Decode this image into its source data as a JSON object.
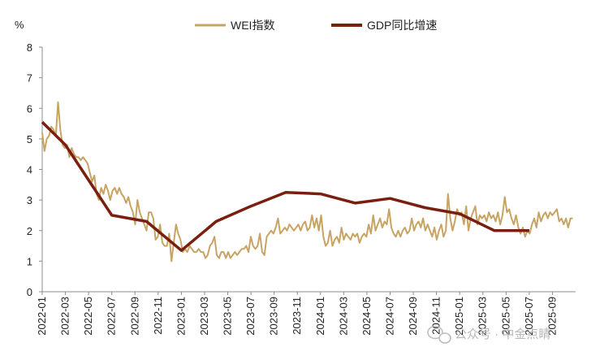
{
  "chart_data": {
    "type": "line",
    "title": "",
    "ylabel": "%",
    "xlabel": "",
    "ylim": [
      0,
      8
    ],
    "yticks": [
      0,
      1,
      2,
      3,
      4,
      5,
      6,
      7,
      8
    ],
    "xlim": [
      "2022-01",
      "2025-10"
    ],
    "xticks": [
      "2022-01",
      "2022-03",
      "2022-05",
      "2022-07",
      "2022-09",
      "2022-11",
      "2023-01",
      "2023-03",
      "2023-05",
      "2023-07",
      "2023-09",
      "2023-11",
      "2024-01",
      "2024-03",
      "2024-05",
      "2024-07",
      "2024-09",
      "2024-11",
      "2025-01",
      "2025-03",
      "2025-05",
      "2025-07",
      "2025-09"
    ],
    "grid": false,
    "legend_position": "top-center",
    "series": [
      {
        "name": "WEI指数",
        "color": "#c8a464",
        "weekly_start": "2022-01",
        "values": [
          5.2,
          4.6,
          5.0,
          5.1,
          5.4,
          5.3,
          5.1,
          6.2,
          5.3,
          4.8,
          4.7,
          4.8,
          4.4,
          4.7,
          4.5,
          4.4,
          4.4,
          4.3,
          4.4,
          4.3,
          4.2,
          3.9,
          3.6,
          3.8,
          3.2,
          3.0,
          3.4,
          3.2,
          3.5,
          3.3,
          3.0,
          3.3,
          3.4,
          3.2,
          3.4,
          3.2,
          3.1,
          2.9,
          3.1,
          2.8,
          2.6,
          2.2,
          3.0,
          2.6,
          2.4,
          2.2,
          2.0,
          2.6,
          2.6,
          2.4,
          1.7,
          1.8,
          2.2,
          1.6,
          1.5,
          1.5,
          1.9,
          1.0,
          1.6,
          2.2,
          1.9,
          1.7,
          1.3,
          1.4,
          1.3,
          1.5,
          1.4,
          1.3,
          1.3,
          1.4,
          1.3,
          1.3,
          1.1,
          1.2,
          1.5,
          1.6,
          1.8,
          1.2,
          1.1,
          1.3,
          1.3,
          1.1,
          1.3,
          1.1,
          1.2,
          1.3,
          1.2,
          1.3,
          1.4,
          1.4,
          1.5,
          1.3,
          1.8,
          1.5,
          1.4,
          1.5,
          1.9,
          1.3,
          1.2,
          1.8,
          1.9,
          2.0,
          1.9,
          2.1,
          2.4,
          1.9,
          2.0,
          2.1,
          2.0,
          2.2,
          2.1,
          2.0,
          2.1,
          2.2,
          2.0,
          2.2,
          2.3,
          2.0,
          2.1,
          2.5,
          2.1,
          2.4,
          2.0,
          2.5,
          1.8,
          1.5,
          1.6,
          2.0,
          1.5,
          1.7,
          1.8,
          1.6,
          2.1,
          1.7,
          1.9,
          1.8,
          1.7,
          1.9,
          1.8,
          1.9,
          1.6,
          1.8,
          1.9,
          1.8,
          2.2,
          1.9,
          2.5,
          2.0,
          2.2,
          2.4,
          2.1,
          2.3,
          2.2,
          2.7,
          2.1,
          1.9,
          1.8,
          2.0,
          1.8,
          2.0,
          2.1,
          1.9,
          2.0,
          2.4,
          2.0,
          2.2,
          2.3,
          2.1,
          2.4,
          2.0,
          2.2,
          2.0,
          1.8,
          2.1,
          1.7,
          2.0,
          2.2,
          1.8,
          2.0,
          3.2,
          2.4,
          2.0,
          2.3,
          2.7,
          2.5,
          2.6,
          2.2,
          2.8,
          2.0,
          2.4,
          2.6,
          2.8,
          2.2,
          2.5,
          2.4,
          2.5,
          2.3,
          2.6,
          2.4,
          2.5,
          2.3,
          2.6,
          2.2,
          2.5,
          3.1,
          2.6,
          2.7,
          2.4,
          2.2,
          2.5,
          2.1,
          1.9,
          2.1,
          1.8,
          2.0,
          1.9,
          2.2,
          2.4,
          2.1,
          2.6,
          2.3,
          2.5,
          2.6,
          2.4,
          2.6,
          2.5,
          2.6,
          2.7,
          2.3,
          2.4,
          2.2,
          2.4,
          2.1,
          2.4,
          2.4
        ]
      },
      {
        "name": "GDP同比增速",
        "color": "#7a1f10",
        "points": [
          [
            "2022-01",
            5.55
          ],
          [
            "2022-03",
            4.8
          ],
          [
            "2022-07",
            2.5
          ],
          [
            "2022-10",
            2.3
          ],
          [
            "2023-01",
            1.35
          ],
          [
            "2023-04",
            2.3
          ],
          [
            "2023-07",
            2.8
          ],
          [
            "2023-10",
            3.25
          ],
          [
            "2024-01",
            3.2
          ],
          [
            "2024-04",
            2.9
          ],
          [
            "2024-07",
            3.05
          ],
          [
            "2024-10",
            2.75
          ],
          [
            "2025-01",
            2.55
          ],
          [
            "2025-04",
            2.0
          ],
          [
            "2025-07",
            2.0
          ]
        ]
      }
    ]
  },
  "watermark": {
    "icon": "wechat-icon",
    "text": "公众号 · 中金点睛"
  }
}
